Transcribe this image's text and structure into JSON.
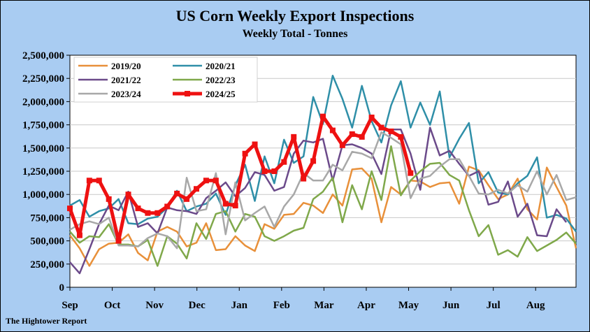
{
  "chart_data": {
    "type": "line",
    "title": "US Corn Weekly Export Inspections",
    "subtitle": "Weekly Total - Tonnes",
    "footer": "The Hightower Report",
    "ylim": [
      0,
      2500000
    ],
    "yticks": [
      0,
      250000,
      500000,
      750000,
      1000000,
      1250000,
      1500000,
      1750000,
      2000000,
      2250000,
      2500000
    ],
    "ytick_labels": [
      "0",
      "250,000",
      "500,000",
      "750,000",
      "1,000,000",
      "1,250,000",
      "1,500,000",
      "1,750,000",
      "2,000,000",
      "2,250,000",
      "2,500,000"
    ],
    "xlim": [
      0,
      52
    ],
    "month_labels": [
      "Sep",
      "Oct",
      "Nov",
      "Dec",
      "Jan",
      "Feb",
      "Mar",
      "Apr",
      "May",
      "Jun",
      "Jul",
      "Aug"
    ],
    "month_positions": [
      0,
      4.35,
      8.7,
      13.05,
      17.4,
      21.75,
      26.1,
      30.45,
      34.8,
      39.15,
      43.5,
      47.85
    ],
    "grid": true,
    "legend_position": "top-left",
    "series": [
      {
        "name": "2019/20",
        "color": "#e8903a",
        "values": [
          560000,
          420000,
          230000,
          410000,
          470000,
          480000,
          570000,
          370000,
          290000,
          600000,
          650000,
          600000,
          440000,
          480000,
          690000,
          400000,
          410000,
          550000,
          450000,
          390000,
          680000,
          630000,
          780000,
          790000,
          910000,
          880000,
          800000,
          1000000,
          880000,
          1270000,
          1280000,
          1170000,
          700000,
          1080000,
          1000000,
          1150000,
          1140000,
          1080000,
          1120000,
          1130000,
          900000,
          1300000,
          1260000,
          1100000,
          950000,
          1000000,
          1170000,
          840000,
          730000,
          1290000,
          1080000,
          880000,
          420000
        ]
      },
      {
        "name": "2020/21",
        "color": "#2f8fa8",
        "values": [
          880000,
          940000,
          760000,
          820000,
          850000,
          950000,
          690000,
          680000,
          740000,
          760000,
          860000,
          1040000,
          820000,
          870000,
          900000,
          1010000,
          780000,
          1100000,
          1320000,
          930000,
          1410000,
          1120000,
          1590000,
          1340000,
          1410000,
          2050000,
          1760000,
          2280000,
          2030000,
          1720000,
          2170000,
          1790000,
          1560000,
          1960000,
          2220000,
          1720000,
          1990000,
          1750000,
          2110000,
          1400000,
          1600000,
          1770000,
          1120000,
          1240000,
          1020000,
          1000000,
          1120000,
          1200000,
          1400000,
          750000,
          780000,
          740000,
          600000
        ]
      },
      {
        "name": "2021/22",
        "color": "#6b4a8a",
        "values": [
          270000,
          150000,
          410000,
          680000,
          880000,
          830000,
          1030000,
          650000,
          690000,
          580000,
          860000,
          830000,
          820000,
          790000,
          960000,
          1040000,
          1130000,
          980000,
          1070000,
          1240000,
          1210000,
          1040000,
          1080000,
          1440000,
          1580000,
          1560000,
          1600000,
          1150000,
          1530000,
          1540000,
          1500000,
          1440000,
          1220000,
          1700000,
          1700000,
          1440000,
          1050000,
          1720000,
          1420000,
          1470000,
          1330000,
          1200000,
          1250000,
          890000,
          920000,
          1140000,
          760000,
          900000,
          560000,
          550000,
          840000,
          700000
        ]
      },
      {
        "name": "2022/23",
        "color": "#7fa84a",
        "values": [
          600000,
          480000,
          550000,
          540000,
          680000,
          460000,
          460000,
          440000,
          510000,
          230000,
          550000,
          470000,
          310000,
          690000,
          520000,
          790000,
          820000,
          600000,
          790000,
          760000,
          550000,
          500000,
          550000,
          610000,
          640000,
          950000,
          1030000,
          1180000,
          700000,
          1100000,
          840000,
          1250000,
          940000,
          1520000,
          990000,
          1150000,
          1250000,
          1330000,
          1340000,
          1210000,
          1150000,
          830000,
          550000,
          670000,
          350000,
          400000,
          330000,
          540000,
          390000,
          450000,
          510000,
          590000,
          470000
        ]
      },
      {
        "name": "2023/24",
        "color": "#a8a8a8",
        "values": [
          620000,
          680000,
          710000,
          680000,
          750000,
          450000,
          450000,
          440000,
          530000,
          580000,
          550000,
          420000,
          1180000,
          820000,
          840000,
          1230000,
          570000,
          1130000,
          720000,
          800000,
          870000,
          650000,
          870000,
          1000000,
          1230000,
          1150000,
          1150000,
          1320000,
          1260000,
          1460000,
          1440000,
          1390000,
          1670000,
          1610000,
          1540000,
          960000,
          1170000,
          1200000,
          1300000,
          1380000,
          1380000,
          1200000,
          1010000,
          1000000,
          1050000,
          1010000,
          1100000,
          1030000,
          1250000,
          1000000,
          1210000,
          940000,
          970000
        ]
      },
      {
        "name": "2024/25",
        "color": "#ee1111",
        "values": [
          850000,
          560000,
          1150000,
          1150000,
          950000,
          500000,
          1000000,
          850000,
          800000,
          800000,
          870000,
          1010000,
          950000,
          1060000,
          1150000,
          1150000,
          900000,
          880000,
          1440000,
          1540000,
          1250000,
          1250000,
          1350000,
          1620000,
          1170000,
          1360000,
          1840000,
          1690000,
          1530000,
          1650000,
          1620000,
          1830000,
          1720000,
          1680000,
          1620000,
          1230000
        ]
      }
    ]
  }
}
